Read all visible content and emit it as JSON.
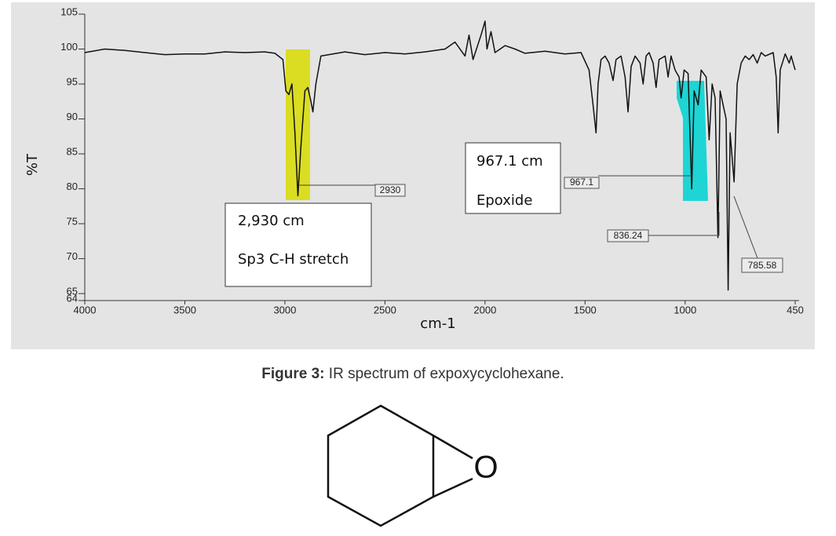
{
  "chart_data": {
    "type": "line",
    "ylabel": "%T",
    "xlabel": "cm-1",
    "xlim": [
      4000,
      450
    ],
    "ylim": [
      64,
      105
    ],
    "xticks": [
      4000,
      3500,
      3000,
      2500,
      2000,
      1500,
      1000,
      450
    ],
    "yticks": [
      105,
      100,
      95,
      90,
      85,
      80,
      75,
      70,
      65,
      64
    ],
    "color": "#111111",
    "x": [
      4000,
      3900,
      3800,
      3700,
      3600,
      3500,
      3400,
      3300,
      3200,
      3100,
      3050,
      3010,
      2995,
      2980,
      2965,
      2950,
      2935,
      2920,
      2900,
      2885,
      2870,
      2860,
      2845,
      2820,
      2700,
      2600,
      2500,
      2400,
      2300,
      2200,
      2150,
      2100,
      2080,
      2060,
      2020,
      2000,
      1990,
      1970,
      1950,
      1900,
      1850,
      1800,
      1700,
      1600,
      1520,
      1480,
      1460,
      1445,
      1435,
      1420,
      1400,
      1380,
      1360,
      1345,
      1320,
      1300,
      1285,
      1270,
      1250,
      1225,
      1210,
      1195,
      1180,
      1160,
      1145,
      1130,
      1100,
      1085,
      1070,
      1050,
      1030,
      1020,
      1005,
      985,
      967,
      955,
      935,
      920,
      895,
      880,
      865,
      850,
      836,
      825,
      810,
      795,
      785,
      775,
      755,
      740,
      720,
      700,
      680,
      660,
      640,
      620,
      600,
      560,
      545,
      535,
      525,
      500,
      480,
      470,
      450
    ],
    "values": [
      99.5,
      100,
      99.8,
      99.5,
      99.2,
      99.3,
      99.3,
      99.6,
      99.5,
      99.6,
      99.4,
      98.5,
      94,
      93.5,
      95,
      88,
      79,
      86,
      94,
      94.5,
      92.5,
      91,
      95,
      99,
      99.6,
      99.2,
      99.5,
      99.3,
      99.6,
      100,
      101,
      99,
      102,
      98.5,
      102,
      104,
      100,
      102.5,
      99.5,
      100.5,
      100,
      99.4,
      99.7,
      99.3,
      99.5,
      97,
      92,
      88,
      95,
      98.5,
      99,
      98,
      95.5,
      98.5,
      99,
      96,
      91,
      97.5,
      99,
      98,
      95,
      99,
      99.5,
      98,
      94.5,
      98.5,
      99,
      96,
      99,
      97,
      96,
      93,
      97,
      96.5,
      80,
      94,
      92,
      97,
      96,
      87,
      95,
      93,
      73,
      94,
      92,
      90,
      65.5,
      88,
      81,
      95,
      98,
      99,
      98.5,
      99.2,
      98,
      99.5,
      99,
      99.5,
      96,
      88,
      97,
      99.3,
      98,
      99,
      97
    ],
    "peak_labels": [
      "2930",
      "967.1",
      "836.24",
      "785.58"
    ],
    "notes": [
      [
        "2,930 cm",
        "Sp3 C-H stretch"
      ],
      [
        "967.1 cm",
        "Epoxide"
      ]
    ]
  },
  "caption": {
    "label": "Figure 3:",
    "text": "IR spectrum of expoxycyclohexane."
  },
  "structure": {
    "atom_label": "O"
  }
}
